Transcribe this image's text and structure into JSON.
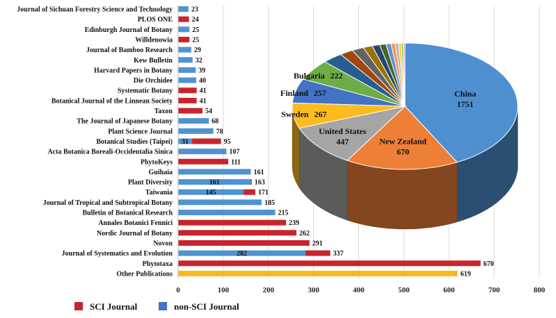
{
  "chart_data": [
    {
      "type": "bar",
      "orientation": "horizontal",
      "stacked": true,
      "categories": [
        "Journal of Sichuan Forestry Science and Technology",
        "PLOS ONE",
        "Edinburgh Journal of Botany",
        "Willdenowia",
        "Journal of Bamboo Research",
        "Kew Bulletin",
        "Harvard Papers in Botany",
        "Die Orchidee",
        "Systematic Botany",
        "Botanical Journal of the Linnean Society",
        "Taxon",
        "The Journal of Japanese Botany",
        "Plant Science Journal",
        "Botanical Studies (Taipei)",
        "Acta Botanica Boreali-Occidentalia Sinica",
        "PhytoKeys",
        "Guihaia",
        "Plant Diversity",
        "Taiwania",
        "Journal of Tropical and Subtropical Botany",
        "Bulletin of Botanical Research",
        "Annales Botanici Fennici",
        "Nordic Journal of Botany",
        "Novon",
        "Journal of Systematics and Evolution",
        "Phytotaxa",
        "Other Publications"
      ],
      "series": [
        {
          "name": "non-SCI Journal",
          "color": "#4F93D2",
          "values": [
            23,
            0,
            25,
            0,
            29,
            32,
            39,
            40,
            0,
            0,
            0,
            68,
            78,
            31,
            107,
            0,
            161,
            161,
            145,
            185,
            215,
            0,
            0,
            0,
            282,
            0,
            0
          ]
        },
        {
          "name": "SCI Journal",
          "color": "#C8242B",
          "values": [
            0,
            24,
            0,
            25,
            0,
            0,
            0,
            0,
            41,
            41,
            54,
            0,
            0,
            64,
            0,
            111,
            0,
            2,
            26,
            0,
            0,
            239,
            262,
            291,
            55,
            670,
            0
          ]
        },
        {
          "name": "",
          "color": "#F9B81F",
          "values": [
            0,
            0,
            0,
            0,
            0,
            0,
            0,
            0,
            0,
            0,
            0,
            0,
            0,
            0,
            0,
            0,
            0,
            0,
            0,
            0,
            0,
            0,
            0,
            0,
            0,
            0,
            619
          ]
        }
      ],
      "total_labels": [
        "23",
        "24",
        "25",
        "25",
        "29",
        "32",
        "39",
        "40",
        "41",
        "41",
        "54",
        "68",
        "78",
        "95",
        "107",
        "111",
        "161",
        "163",
        "171",
        "185",
        "215",
        "239",
        "262",
        "291",
        "337",
        "670",
        "619"
      ],
      "inner_labels": [
        {
          "category": "Botanical Studies (Taipei)",
          "text": "31"
        },
        {
          "category": "Plant Diversity",
          "text": "161"
        },
        {
          "category": "Taiwania",
          "text": "145"
        },
        {
          "category": "Journal of Systematics and Evolution",
          "text": "282"
        }
      ],
      "xlim": [
        0,
        800
      ],
      "xticks": [
        0,
        100,
        200,
        300,
        400,
        500,
        600,
        700,
        800
      ],
      "grid": "vertical",
      "legend": {
        "position": "bottom-left",
        "entries": [
          {
            "label": "SCI Journal",
            "color": "#C8242B"
          },
          {
            "label": "non-SCI Journal",
            "color": "#4472C4"
          }
        ]
      }
    },
    {
      "type": "pie",
      "style": "3d",
      "slices": [
        {
          "label": "China",
          "value": 1751,
          "color": "#4E8FD0",
          "labeled": true
        },
        {
          "label": "New Zealand",
          "value": 670,
          "color": "#EE7F36",
          "labeled": true
        },
        {
          "label": "United States",
          "value": 447,
          "color": "#A5A5A5",
          "labeled": true
        },
        {
          "label": "Sweden",
          "value": 267,
          "color": "#FDBB1D",
          "labeled": true
        },
        {
          "label": "Finland",
          "value": 257,
          "color": "#4472C4",
          "labeled": true
        },
        {
          "label": "Bulgaria",
          "value": 222,
          "color": "#6DAD45",
          "labeled": true
        },
        {
          "label": "",
          "value": 120,
          "color": "#255E91",
          "labeled": false
        },
        {
          "label": "",
          "value": 80,
          "color": "#9E480E",
          "labeled": false
        },
        {
          "label": "",
          "value": 70,
          "color": "#636363",
          "labeled": false
        },
        {
          "label": "",
          "value": 55,
          "color": "#997300",
          "labeled": false
        },
        {
          "label": "",
          "value": 45,
          "color": "#264478",
          "labeled": false
        },
        {
          "label": "",
          "value": 38,
          "color": "#43682B",
          "labeled": false
        },
        {
          "label": "",
          "value": 30,
          "color": "#698ED0",
          "labeled": false
        },
        {
          "label": "",
          "value": 24,
          "color": "#F1975A",
          "labeled": false
        },
        {
          "label": "",
          "value": 20,
          "color": "#B7B7B7",
          "labeled": false
        },
        {
          "label": "",
          "value": 16,
          "color": "#FFCD33",
          "labeled": false
        },
        {
          "label": "",
          "value": 12,
          "color": "#8CC168",
          "labeled": false
        },
        {
          "label": "",
          "value": 10,
          "color": "#C9A0DC",
          "labeled": false
        }
      ]
    }
  ]
}
